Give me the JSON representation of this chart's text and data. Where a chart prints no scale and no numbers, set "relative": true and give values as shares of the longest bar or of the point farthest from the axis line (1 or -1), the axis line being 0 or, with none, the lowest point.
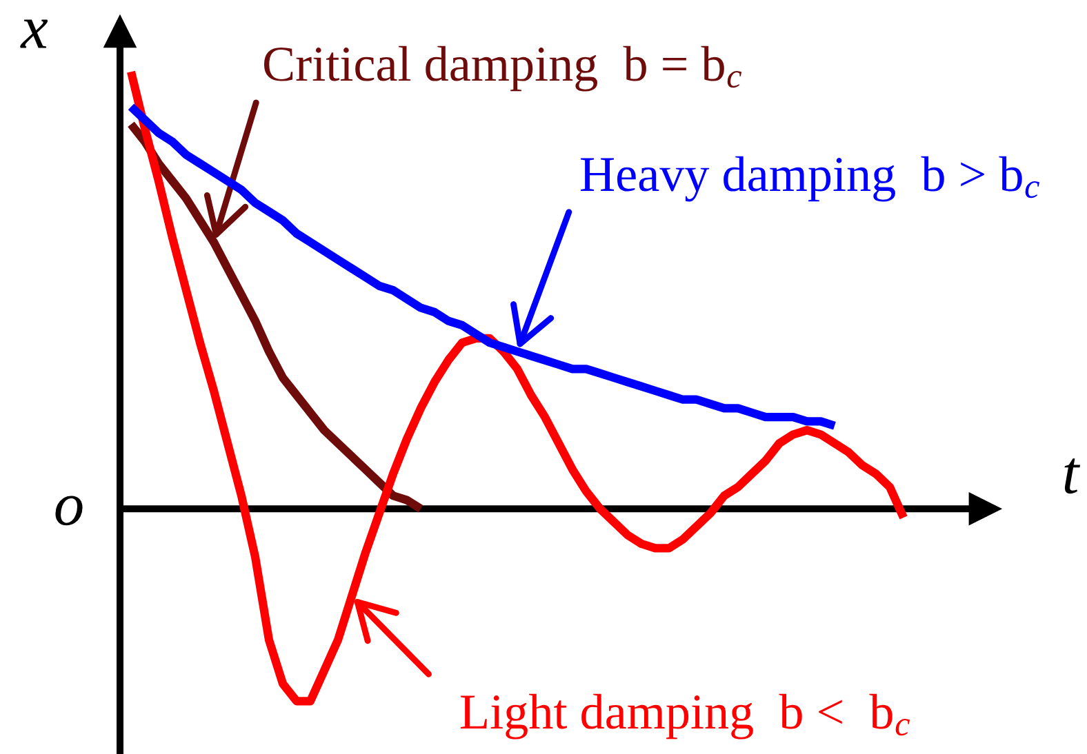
{
  "chart_data": {
    "type": "line",
    "relative": true,
    "xlabel": "t",
    "ylabel": "x",
    "categories": [
      null,
      null,
      null,
      null,
      null,
      null,
      null,
      null,
      null,
      null,
      null,
      null,
      null,
      null,
      null,
      null,
      null,
      null,
      null,
      null,
      null,
      null,
      null,
      null,
      null,
      null,
      null,
      null,
      null,
      null,
      null,
      null,
      null,
      null,
      null,
      null,
      null,
      null,
      null,
      null,
      null,
      null,
      null,
      null,
      null,
      null,
      null,
      null,
      null,
      null,
      null,
      null,
      null,
      null,
      null,
      null,
      null
    ],
    "series": [
      {
        "color": "#6e0c0c",
        "values": [
          0.88,
          0.84,
          0.79,
          0.75,
          0.71,
          0.66,
          0.61,
          0.55,
          0.49,
          0.43,
          0.36,
          0.3,
          0.26,
          0.22,
          0.18,
          0.15,
          0.12,
          0.09,
          0.06,
          0.03,
          0.02,
          0.0,
          null,
          null,
          null,
          null,
          null,
          null,
          null,
          null,
          null,
          null,
          null,
          null,
          null,
          null,
          null,
          null,
          null,
          null,
          null,
          null,
          null,
          null,
          null,
          null,
          null,
          null,
          null,
          null,
          null,
          null,
          null,
          null,
          null,
          null,
          null
        ]
      },
      {
        "color": "#ff0000",
        "values": [
          1.0,
          0.87,
          0.75,
          0.62,
          0.5,
          0.38,
          0.27,
          0.15,
          0.03,
          -0.11,
          -0.3,
          -0.4,
          -0.44,
          -0.44,
          -0.37,
          -0.3,
          -0.2,
          -0.1,
          -0.01,
          0.08,
          0.16,
          0.23,
          0.29,
          0.34,
          0.38,
          0.39,
          0.39,
          0.36,
          0.32,
          0.26,
          0.21,
          0.15,
          0.09,
          0.04,
          0.0,
          -0.03,
          -0.06,
          -0.08,
          -0.09,
          -0.09,
          -0.07,
          -0.04,
          -0.01,
          0.03,
          0.05,
          0.08,
          0.11,
          0.15,
          0.17,
          0.18,
          0.17,
          0.15,
          0.13,
          0.1,
          0.08,
          0.05,
          -0.02
        ]
      },
      {
        "color": "#0000ff",
        "values": [
          0.92,
          0.89,
          0.86,
          0.84,
          0.81,
          0.79,
          0.77,
          0.75,
          0.73,
          0.7,
          0.68,
          0.66,
          0.63,
          0.61,
          0.59,
          0.57,
          0.55,
          0.53,
          0.51,
          0.5,
          0.48,
          0.46,
          0.45,
          0.43,
          0.42,
          0.4,
          0.38,
          0.37,
          0.36,
          0.35,
          0.34,
          0.33,
          0.32,
          0.32,
          0.31,
          0.3,
          0.29,
          0.28,
          0.27,
          0.26,
          0.25,
          0.25,
          0.24,
          0.23,
          0.23,
          0.22,
          0.21,
          0.21,
          0.21,
          0.2,
          0.2,
          0.19,
          null,
          null,
          null,
          null,
          null
        ]
      }
    ],
    "annotations": [
      "Critical damping  b = b$_{c}$",
      "Light damping  b <  b$_{c}$",
      "Heavy damping  b > b$_{c}$",
      "o"
    ]
  }
}
